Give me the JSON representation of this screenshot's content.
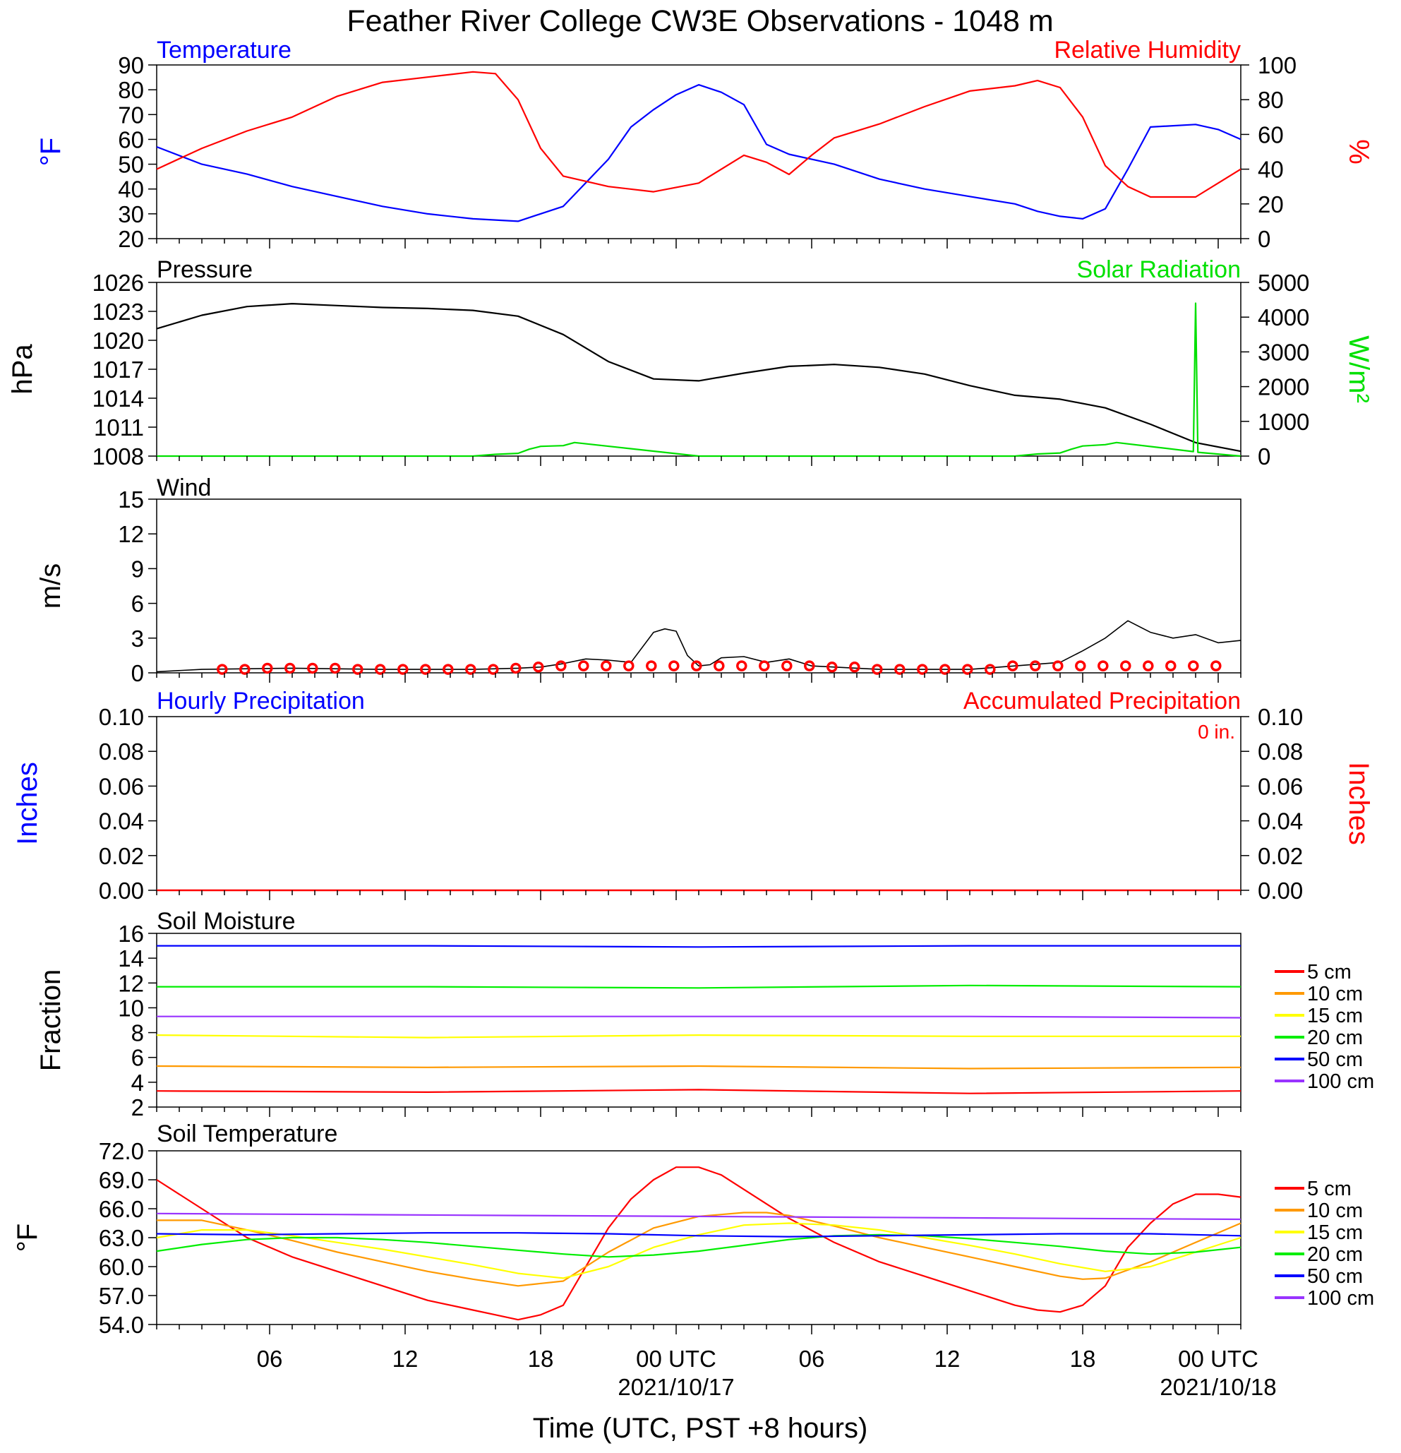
{
  "title": "Feather River College CW3E Observations - 1048 m",
  "x_axis": {
    "label": "Time (UTC, PST +8 hours)",
    "tick_labels": [
      "06",
      "12",
      "18",
      "00 UTC",
      "06",
      "12",
      "18",
      "00 UTC"
    ],
    "date_labels": [
      "2021/10/17",
      "2021/10/18"
    ],
    "start": "2021-10-16 01:00 UTC",
    "end": "2021-10-18 01:00 UTC"
  },
  "colors": {
    "temperature": "#0000ff",
    "humidity": "#ff0000",
    "pressure": "#000000",
    "solar": "#00e000",
    "wind": "#000000",
    "precip": "#ff0000"
  },
  "panels": {
    "temp": {
      "title_left": "Temperature",
      "title_right": "Relative Humidity",
      "ylabel_left": "°F",
      "ylabel_right": "%",
      "ticks_left": [
        "90",
        "80",
        "70",
        "60",
        "50",
        "40",
        "30",
        "20"
      ],
      "ticks_right": [
        "100",
        "80",
        "60",
        "40",
        "20",
        "0"
      ]
    },
    "pressure": {
      "title_left": "Pressure",
      "title_right": "Solar Radiation",
      "ylabel_left": "hPa",
      "ylabel_right": "W/m²",
      "ticks_left": [
        "1026",
        "1023",
        "1020",
        "1017",
        "1014",
        "1011",
        "1008"
      ],
      "ticks_right": [
        "5000",
        "4000",
        "3000",
        "2000",
        "1000",
        "0"
      ]
    },
    "wind": {
      "title_left": "Wind",
      "ylabel_left": "m/s",
      "ticks_left": [
        "15",
        "12",
        "9",
        "6",
        "3",
        "0"
      ]
    },
    "precip": {
      "title_left": "Hourly Precipitation",
      "title_right": "Accumulated Precipitation",
      "total": "0 in.",
      "ylabel_left": "Inches",
      "ylabel_right": "Inches",
      "ticks_left": [
        "0.10",
        "0.08",
        "0.06",
        "0.04",
        "0.02",
        "0.00"
      ],
      "ticks_right": [
        "0.10",
        "0.08",
        "0.06",
        "0.04",
        "0.02",
        "0.00"
      ]
    },
    "moisture": {
      "title_left": "Soil Moisture",
      "ylabel_left": "Fraction",
      "ticks_left": [
        "16",
        "14",
        "12",
        "10",
        "8",
        "6",
        "4",
        "2"
      ],
      "legend": [
        "5 cm",
        "10 cm",
        "15 cm",
        "20 cm",
        "50 cm",
        "100 cm"
      ]
    },
    "soiltemp": {
      "title_left": "Soil Temperature",
      "ylabel_left": "°F",
      "ticks_left": [
        "72.0",
        "69.0",
        "66.0",
        "63.0",
        "60.0",
        "57.0",
        "54.0"
      ],
      "legend": [
        "5 cm",
        "10 cm",
        "15 cm",
        "20 cm",
        "50 cm",
        "100 cm"
      ]
    }
  },
  "depth_colors": [
    "#ff0000",
    "#ff9900",
    "#ffff00",
    "#00ee00",
    "#0000ff",
    "#9933ff"
  ],
  "chart_data": [
    {
      "type": "line",
      "name": "temperature",
      "unit": "°F",
      "x_hours_utc_from_2021-10-16T01": [
        0,
        2,
        4,
        6,
        8,
        10,
        12,
        14,
        16,
        18,
        20,
        21,
        22,
        23,
        24,
        25,
        26,
        27,
        28,
        30,
        32,
        34,
        36,
        38,
        39,
        40,
        41,
        42,
        43,
        44,
        46,
        47,
        48
      ],
      "y": [
        57,
        50,
        46,
        41,
        37,
        33,
        30,
        28,
        27,
        33,
        52,
        65,
        72,
        78,
        82,
        79,
        74,
        58,
        54,
        50,
        44,
        40,
        37,
        34,
        31,
        29,
        28,
        32,
        48,
        65,
        66,
        64,
        60
      ],
      "ylim": [
        20,
        90
      ]
    },
    {
      "type": "line",
      "name": "relative humidity",
      "unit": "%",
      "x": [
        0,
        2,
        4,
        6,
        8,
        10,
        12,
        14,
        15,
        16,
        17,
        18,
        20,
        22,
        24,
        26,
        27,
        28,
        29,
        30,
        32,
        34,
        36,
        38,
        39,
        40,
        41,
        42,
        43,
        44,
        46,
        47,
        48
      ],
      "y": [
        40,
        52,
        62,
        70,
        82,
        90,
        93,
        96,
        95,
        80,
        52,
        36,
        30,
        27,
        32,
        48,
        44,
        37,
        48,
        58,
        66,
        76,
        85,
        88,
        91,
        87,
        70,
        42,
        30,
        24,
        24,
        32,
        40
      ],
      "ylim": [
        0,
        100
      ]
    },
    {
      "type": "line",
      "name": "pressure",
      "unit": "hPa",
      "x": [
        0,
        2,
        4,
        6,
        8,
        10,
        12,
        14,
        16,
        18,
        20,
        22,
        24,
        26,
        28,
        30,
        32,
        34,
        36,
        38,
        40,
        42,
        44,
        46,
        48
      ],
      "y": [
        1021.2,
        1022.6,
        1023.5,
        1023.8,
        1023.6,
        1023.4,
        1023.3,
        1023.1,
        1022.5,
        1020.6,
        1017.8,
        1016.0,
        1015.8,
        1016.6,
        1017.3,
        1017.5,
        1017.2,
        1016.5,
        1015.3,
        1014.3,
        1013.9,
        1013.0,
        1011.3,
        1009.4,
        1008.5
      ],
      "ylim": [
        1008,
        1026
      ]
    },
    {
      "type": "line",
      "name": "solar radiation",
      "unit": "W/m²",
      "x": [
        0,
        14,
        15,
        16,
        16.5,
        17,
        18,
        18.5,
        24,
        38,
        39,
        40,
        40.5,
        41,
        42,
        42.5,
        45.9,
        46,
        46.1,
        48
      ],
      "y": [
        0,
        0,
        50,
        80,
        200,
        280,
        300,
        390,
        0,
        0,
        60,
        90,
        200,
        290,
        330,
        390,
        130,
        4400,
        110,
        0
      ],
      "ylim": [
        0,
        5000
      ]
    },
    {
      "type": "line",
      "name": "wind speed",
      "unit": "m/s",
      "x": [
        0,
        2,
        6,
        10,
        14,
        16,
        17,
        18,
        19,
        20,
        21,
        22,
        22.5,
        23,
        23.5,
        24,
        24.5,
        25,
        26,
        27,
        28,
        29,
        30,
        32,
        34,
        36,
        38,
        40,
        41,
        42,
        43,
        44,
        45,
        46,
        47,
        48
      ],
      "y": [
        0.1,
        0.3,
        0.4,
        0.3,
        0.3,
        0.4,
        0.5,
        0.8,
        1.2,
        1.1,
        0.9,
        3.5,
        3.8,
        3.6,
        1.5,
        0.6,
        0.7,
        1.3,
        1.4,
        0.9,
        1.2,
        0.6,
        0.5,
        0.3,
        0.3,
        0.3,
        0.6,
        0.9,
        1.9,
        3.0,
        4.5,
        3.5,
        3.0,
        3.3,
        2.6,
        2.8
      ],
      "ylim": [
        0,
        15
      ]
    },
    {
      "type": "bar",
      "name": "hourly precipitation",
      "unit": "in",
      "values": "all 0.00",
      "ylim": [
        0,
        0.1
      ]
    },
    {
      "type": "line",
      "name": "accumulated precipitation",
      "unit": "in",
      "total": 0,
      "ylim": [
        0,
        0.1
      ]
    },
    {
      "type": "line",
      "name": "soil moisture",
      "ylim": [
        2,
        16
      ],
      "series": [
        {
          "name": "5 cm",
          "x": [
            0,
            12,
            24,
            36,
            48
          ],
          "y": [
            3.3,
            3.2,
            3.4,
            3.1,
            3.3
          ]
        },
        {
          "name": "10 cm",
          "x": [
            0,
            12,
            24,
            36,
            48
          ],
          "y": [
            5.3,
            5.2,
            5.3,
            5.1,
            5.2
          ]
        },
        {
          "name": "15 cm",
          "x": [
            0,
            12,
            24,
            36,
            48
          ],
          "y": [
            7.8,
            7.6,
            7.8,
            7.7,
            7.7
          ]
        },
        {
          "name": "20 cm",
          "x": [
            0,
            12,
            24,
            36,
            48
          ],
          "y": [
            11.7,
            11.7,
            11.6,
            11.8,
            11.7
          ]
        },
        {
          "name": "50 cm",
          "x": [
            0,
            12,
            24,
            36,
            48
          ],
          "y": [
            15.0,
            15.0,
            14.9,
            15.0,
            15.0
          ]
        },
        {
          "name": "100 cm",
          "x": [
            0,
            12,
            24,
            36,
            48
          ],
          "y": [
            9.3,
            9.3,
            9.3,
            9.3,
            9.2
          ]
        }
      ]
    },
    {
      "type": "line",
      "name": "soil temperature",
      "unit": "°F",
      "ylim": [
        54,
        72
      ],
      "series": [
        {
          "name": "5 cm",
          "x": [
            0,
            2,
            4,
            6,
            8,
            10,
            12,
            14,
            15,
            16,
            17,
            18,
            19,
            20,
            21,
            22,
            23,
            24,
            25,
            26,
            28,
            30,
            32,
            34,
            36,
            38,
            39,
            40,
            41,
            42,
            43,
            44,
            45,
            46,
            47,
            48
          ],
          "y": [
            69,
            66,
            63,
            61,
            59.5,
            58,
            56.5,
            55.5,
            55,
            54.5,
            55,
            56,
            60,
            64,
            67,
            69,
            70.3,
            70.3,
            69.5,
            68,
            65,
            62.5,
            60.5,
            59,
            57.5,
            56,
            55.5,
            55.3,
            56,
            58,
            62,
            64.5,
            66.5,
            67.5,
            67.5,
            67.2
          ]
        },
        {
          "name": "10 cm",
          "x": [
            0,
            2,
            4,
            6,
            8,
            10,
            12,
            14,
            16,
            18,
            20,
            22,
            24,
            26,
            27,
            28,
            30,
            32,
            34,
            36,
            38,
            40,
            41,
            42,
            44,
            46,
            48
          ],
          "y": [
            64.8,
            64.8,
            63.8,
            62.7,
            61.5,
            60.5,
            59.5,
            58.7,
            58,
            58.5,
            61.5,
            64,
            65.2,
            65.6,
            65.6,
            65.3,
            64.2,
            63,
            62,
            61,
            60,
            59,
            58.7,
            58.8,
            60.5,
            62.5,
            64.5
          ]
        },
        {
          "name": "15 cm",
          "x": [
            0,
            2,
            4,
            6,
            8,
            10,
            12,
            14,
            16,
            18,
            20,
            22,
            24,
            26,
            28,
            30,
            32,
            34,
            36,
            38,
            40,
            42,
            44,
            46,
            48
          ],
          "y": [
            63,
            63.8,
            63.8,
            63.2,
            62.5,
            61.8,
            61,
            60.2,
            59.3,
            58.8,
            60,
            62,
            63.3,
            64.3,
            64.5,
            64.3,
            63.8,
            63,
            62.2,
            61.3,
            60.3,
            59.5,
            60,
            61.5,
            63
          ]
        },
        {
          "name": "20 cm",
          "x": [
            0,
            2,
            4,
            6,
            8,
            10,
            12,
            14,
            16,
            18,
            20,
            22,
            24,
            26,
            28,
            30,
            32,
            34,
            36,
            38,
            40,
            42,
            44,
            46,
            48
          ],
          "y": [
            61.6,
            62.3,
            62.8,
            63,
            63,
            62.8,
            62.5,
            62.1,
            61.7,
            61.3,
            61,
            61.2,
            61.6,
            62.2,
            62.8,
            63.2,
            63.3,
            63.2,
            62.9,
            62.5,
            62.1,
            61.6,
            61.3,
            61.5,
            62
          ]
        },
        {
          "name": "50 cm",
          "x": [
            0,
            4,
            8,
            12,
            16,
            20,
            24,
            28,
            32,
            36,
            40,
            44,
            48
          ],
          "y": [
            63.4,
            63.3,
            63.4,
            63.5,
            63.5,
            63.4,
            63.2,
            63.1,
            63.2,
            63.3,
            63.4,
            63.4,
            63.2
          ]
        },
        {
          "name": "100 cm",
          "x": [
            0,
            8,
            16,
            24,
            32,
            40,
            48
          ],
          "y": [
            65.5,
            65.4,
            65.3,
            65.2,
            65.1,
            65,
            64.9
          ]
        }
      ]
    }
  ]
}
